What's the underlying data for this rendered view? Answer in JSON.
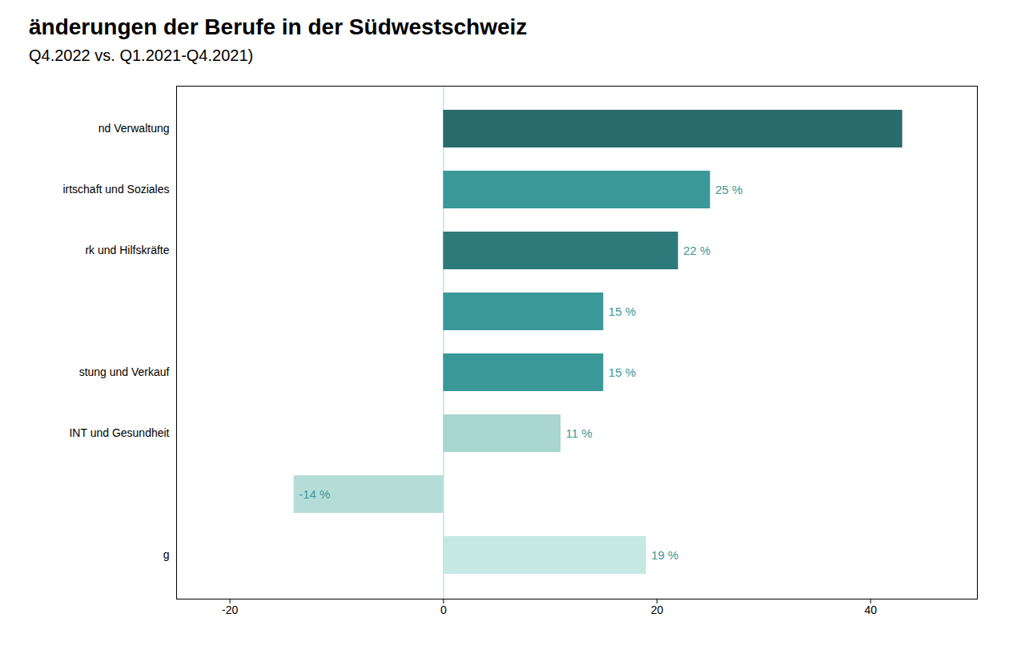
{
  "chart_data": {
    "type": "bar",
    "orientation": "horizontal",
    "title": "änderungen der Berufe in der Südwestschweiz",
    "subtitle": "Q4.2022 vs. Q1.2021-Q4.2021)",
    "categories": [
      "nd Verwaltung",
      "irtschaft und Soziales",
      "rk und Hilfskräfte",
      null,
      "stung und Verkauf",
      "INT und Gesundheit",
      null,
      "g"
    ],
    "values": [
      43,
      25,
      22,
      15,
      15,
      11,
      -14,
      19
    ],
    "colors": [
      "#2a6b6b",
      "#3a9898",
      "#2d7a7a",
      "#3a9898",
      "#3a9898",
      "#a8d5d0",
      "#b5ddd8",
      "#c5e8e3"
    ],
    "data_labels": true,
    "value_labels": [
      null,
      "25 %",
      "22 %",
      "15 %",
      "15 %",
      "11 %",
      "-14 %",
      "19 %"
    ],
    "xlim": [
      -25,
      50
    ],
    "xticks": [
      -20,
      0,
      20,
      40
    ]
  }
}
